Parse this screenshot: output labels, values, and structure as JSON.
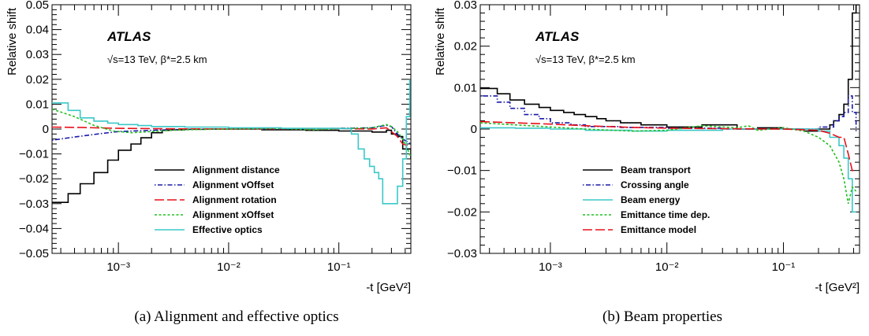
{
  "chart_data": [
    {
      "type": "line",
      "title": "",
      "xlabel": "-t [GeV²]",
      "ylabel": "Relative shift",
      "xscale": "log",
      "xlim": [
        0.00025,
        0.45
      ],
      "ylim": [
        -0.05,
        0.05
      ],
      "yticks": [
        -0.05,
        -0.04,
        -0.03,
        -0.02,
        -0.01,
        0,
        0.01,
        0.02,
        0.03,
        0.04,
        0.05
      ],
      "ytick_labels": [
        "−0.05",
        "−0.04",
        "−0.03",
        "−0.02",
        "−0.01",
        "0",
        "0.01",
        "0.02",
        "0.03",
        "0.04",
        "0.05"
      ],
      "xticks": [
        0.001,
        0.01,
        0.1
      ],
      "xtick_labels": [
        "10⁻³",
        "10⁻²",
        "10⁻¹"
      ],
      "grid": false,
      "legend_position": "bottom-center",
      "annotation": {
        "experiment": "ATLAS",
        "energy": "√s=13 TeV, β*=2.5 km"
      },
      "caption": "(a) Alignment and effective optics",
      "series": [
        {
          "name": "Alignment distance",
          "color": "#000000",
          "dash": "",
          "step": true,
          "x": [
            0.00025,
            0.00035,
            0.00045,
            0.0006,
            0.0008,
            0.001,
            0.0013,
            0.0016,
            0.002,
            0.0025,
            0.003,
            0.004,
            0.006,
            0.01,
            0.02,
            0.05,
            0.1,
            0.2,
            0.27,
            0.3,
            0.34,
            0.38,
            0.45
          ],
          "y": [
            -0.0295,
            -0.026,
            -0.022,
            -0.0175,
            -0.0125,
            -0.0085,
            -0.006,
            -0.0035,
            -0.0015,
            -0.0005,
            -0.0003,
            -0.0001,
            0,
            0,
            -0.0003,
            -0.0005,
            -0.0008,
            -0.0012,
            -0.0005,
            -0.002,
            -0.003,
            -0.008,
            -0.012
          ]
        },
        {
          "name": "Alignment vOffset",
          "color": "#1a1aa8",
          "dash": "1.5,2.5,6,2.5",
          "step": false,
          "x": [
            0.00025,
            0.0004,
            0.0007,
            0.001,
            0.002,
            0.004,
            0.01,
            0.03,
            0.1,
            0.2,
            0.27,
            0.3,
            0.34,
            0.38,
            0.45
          ],
          "y": [
            -0.0045,
            -0.0032,
            -0.0018,
            -0.001,
            -0.0005,
            -0.0001,
            0,
            0,
            0.0003,
            0.0005,
            0.0015,
            0.001,
            -0.002,
            -0.004,
            -0.006
          ]
        },
        {
          "name": "Alignment rotation",
          "color": "#e8101a",
          "dash": "12,4",
          "step": false,
          "x": [
            0.00025,
            0.0005,
            0.001,
            0.003,
            0.01,
            0.03,
            0.1,
            0.2,
            0.27,
            0.3,
            0.34,
            0.38,
            0.45
          ],
          "y": [
            0.0008,
            0.0006,
            0.0003,
            0.0001,
            0,
            0.0001,
            0.0002,
            0,
            0.0005,
            -0.001,
            -0.003,
            -0.006,
            -0.007
          ]
        },
        {
          "name": "Alignment xOffset",
          "color": "#1fbf1f",
          "dash": "3,2.5",
          "step": false,
          "x": [
            0.00025,
            0.0004,
            0.0006,
            0.0009,
            0.0013,
            0.002,
            0.003,
            0.005,
            0.01,
            0.03,
            0.06,
            0.1,
            0.2,
            0.27,
            0.3,
            0.34,
            0.38,
            0.45
          ],
          "y": [
            0.008,
            0.005,
            0.0015,
            -0.0008,
            -0.0015,
            -0.001,
            -0.0005,
            -0.0002,
            0,
            0.0002,
            -0.0003,
            0.0002,
            0.0005,
            0.0018,
            0.001,
            -0.001,
            -0.004,
            -0.011
          ]
        },
        {
          "name": "Effective optics",
          "color": "#3cc8c8",
          "dash": "",
          "step": true,
          "x": [
            0.00025,
            0.00035,
            0.00045,
            0.0006,
            0.0008,
            0.001,
            0.0015,
            0.002,
            0.004,
            0.01,
            0.03,
            0.1,
            0.13,
            0.15,
            0.17,
            0.19,
            0.21,
            0.23,
            0.25,
            0.3,
            0.34,
            0.38,
            0.41,
            0.44
          ],
          "y": [
            0.0105,
            0.0075,
            0.0045,
            0.0032,
            0.0024,
            0.0018,
            0.0014,
            0.001,
            0.0008,
            0.0005,
            0.0003,
            0.0002,
            -0.002,
            -0.008,
            -0.012,
            -0.015,
            -0.0175,
            -0.02,
            -0.03,
            -0.03,
            -0.023,
            -0.012,
            0.005,
            0.02
          ]
        }
      ]
    },
    {
      "type": "line",
      "title": "",
      "xlabel": "-t [GeV²]",
      "ylabel": "Relative shift",
      "xscale": "log",
      "xlim": [
        0.00025,
        0.45
      ],
      "ylim": [
        -0.03,
        0.03
      ],
      "yticks": [
        -0.03,
        -0.02,
        -0.01,
        0,
        0.01,
        0.02,
        0.03
      ],
      "ytick_labels": [
        "−0.03",
        "−0.02",
        "−0.01",
        "0",
        "0.01",
        "0.02",
        "0.03"
      ],
      "xticks": [
        0.001,
        0.01,
        0.1
      ],
      "xtick_labels": [
        "10⁻³",
        "10⁻²",
        "10⁻¹"
      ],
      "grid": false,
      "legend_position": "bottom-center",
      "annotation": {
        "experiment": "ATLAS",
        "energy": "√s=13 TeV, β*=2.5 km"
      },
      "caption": "(b) Beam properties",
      "series": [
        {
          "name": "Beam transport",
          "color": "#000000",
          "dash": "",
          "step": true,
          "x": [
            0.00025,
            0.00035,
            0.00045,
            0.0006,
            0.0008,
            0.001,
            0.0013,
            0.0016,
            0.002,
            0.0025,
            0.003,
            0.004,
            0.006,
            0.01,
            0.02,
            0.04,
            0.06,
            0.1,
            0.15,
            0.2,
            0.25,
            0.27,
            0.3,
            0.33,
            0.36,
            0.39,
            0.42,
            0.45
          ],
          "y": [
            0.0098,
            0.0085,
            0.007,
            0.006,
            0.0052,
            0.0045,
            0.004,
            0.0035,
            0.003,
            0.0025,
            0.002,
            0.0015,
            0.001,
            0.0005,
            0.001,
            0,
            0.0003,
            0,
            -0.0005,
            0,
            0.001,
            0.002,
            0.0035,
            0.006,
            0.012,
            0.028,
            0.03,
            0.03
          ]
        },
        {
          "name": "Crossing angle",
          "color": "#1a1aa8",
          "dash": "1.5,2.5,6,2.5",
          "step": true,
          "x": [
            0.00025,
            0.00035,
            0.00045,
            0.0006,
            0.0008,
            0.001,
            0.0015,
            0.002,
            0.004,
            0.01,
            0.03,
            0.1,
            0.2,
            0.27,
            0.3,
            0.33,
            0.36,
            0.39,
            0.42
          ],
          "y": [
            0.008,
            0.0065,
            0.005,
            0.0035,
            0.0025,
            0.0015,
            0.001,
            0.0006,
            0.0004,
            0.0002,
            0,
            0,
            0.0005,
            0.002,
            0.003,
            0.004,
            0.008,
            0.004,
            -0.0005
          ]
        },
        {
          "name": "Beam energy",
          "color": "#3cc8c8",
          "dash": "",
          "step": true,
          "x": [
            0.00025,
            0.0005,
            0.001,
            0.002,
            0.005,
            0.01,
            0.03,
            0.1,
            0.2,
            0.25,
            0.3,
            0.33,
            0.36,
            0.39,
            0.42
          ],
          "y": [
            0.0003,
            0.0002,
            0,
            -0.0003,
            -0.0005,
            -0.0003,
            0,
            0,
            -0.0005,
            -0.002,
            -0.004,
            -0.007,
            -0.012,
            -0.02,
            -0.02
          ]
        },
        {
          "name": "Emittance time dep.",
          "color": "#1fbf1f",
          "dash": "3,2.5",
          "step": false,
          "x": [
            0.00025,
            0.0005,
            0.001,
            0.002,
            0.005,
            0.01,
            0.02,
            0.04,
            0.05,
            0.06,
            0.1,
            0.15,
            0.2,
            0.25,
            0.3,
            0.33,
            0.36,
            0.39,
            0.42
          ],
          "y": [
            0.0015,
            0.001,
            0.0005,
            0,
            -0.0005,
            -0.0003,
            0.0008,
            0.0003,
            0.0008,
            -0.0003,
            0.0003,
            -0.0005,
            -0.002,
            -0.004,
            -0.008,
            -0.012,
            -0.018,
            -0.014,
            -0.015
          ]
        },
        {
          "name": "Emittance model",
          "color": "#e8101a",
          "dash": "12,4",
          "step": false,
          "x": [
            0.00025,
            0.0005,
            0.001,
            0.002,
            0.005,
            0.01,
            0.03,
            0.1,
            0.2,
            0.25,
            0.3,
            0.33,
            0.36,
            0.39,
            0.42
          ],
          "y": [
            0.0018,
            0.0015,
            0.0012,
            0.0008,
            0.0004,
            0.0002,
            0.0001,
            0,
            -0.0003,
            -0.001,
            -0.002,
            -0.002,
            -0.006,
            -0.01,
            -0.01
          ]
        }
      ]
    }
  ]
}
